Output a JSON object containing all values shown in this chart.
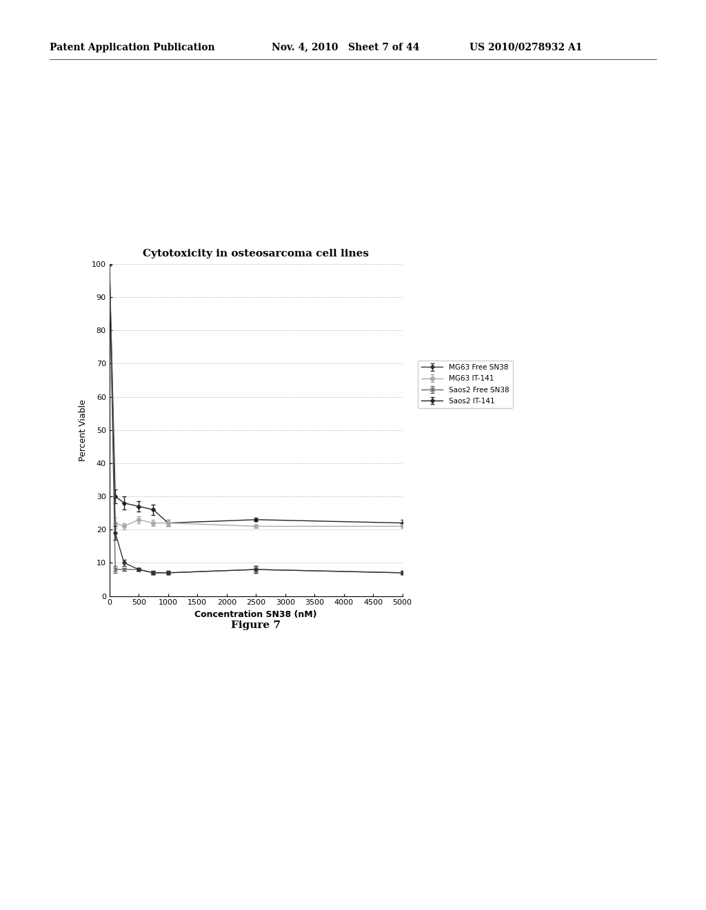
{
  "title": "Cytotoxicity in osteosarcoma cell lines",
  "xlabel": "Concentration SN38 (nM)",
  "ylabel": "Percent Viable",
  "figure_caption": "Figure 7",
  "header_left": "Patent Application Publication",
  "header_mid": "Nov. 4, 2010   Sheet 7 of 44",
  "header_right": "US 2010/0278932 A1",
  "xlim": [
    0,
    5000
  ],
  "ylim": [
    0,
    100
  ],
  "xticks": [
    0,
    500,
    1000,
    1500,
    2000,
    2500,
    3000,
    3500,
    4000,
    4500,
    5000
  ],
  "yticks": [
    0,
    10,
    20,
    30,
    40,
    50,
    60,
    70,
    80,
    90,
    100
  ],
  "series": [
    {
      "label": "MG63 Free SN38",
      "x": [
        0,
        100,
        250,
        500,
        750,
        1000,
        2500,
        5000
      ],
      "y": [
        100,
        19,
        10,
        8,
        7,
        7,
        8,
        7
      ],
      "yerr": [
        0,
        2,
        1,
        0.5,
        0.5,
        0.5,
        1,
        0.5
      ],
      "color": "#333333",
      "linestyle": "-",
      "marker": "D",
      "markersize": 3,
      "linewidth": 1.0
    },
    {
      "label": "MG63 IT-141",
      "x": [
        0,
        100,
        250,
        500,
        750,
        1000,
        2500,
        5000
      ],
      "y": [
        100,
        22,
        21,
        23,
        22,
        22,
        21,
        21
      ],
      "yerr": [
        0,
        1.5,
        1,
        1,
        1,
        1,
        0.5,
        0.5
      ],
      "color": "#aaaaaa",
      "linestyle": "-",
      "marker": "o",
      "markersize": 4,
      "linewidth": 1.0
    },
    {
      "label": "Saos2 Free SN38",
      "x": [
        0,
        100,
        250,
        500,
        750,
        1000,
        2500,
        5000
      ],
      "y": [
        100,
        8,
        8,
        8,
        7,
        7,
        8,
        7
      ],
      "yerr": [
        0,
        1,
        0.5,
        0.5,
        0.5,
        0.5,
        1,
        0.5
      ],
      "color": "#666666",
      "linestyle": "-",
      "marker": "x",
      "markersize": 5,
      "linewidth": 1.0
    },
    {
      "label": "Saos2 IT-141",
      "x": [
        0,
        100,
        250,
        500,
        750,
        1000,
        2500,
        5000
      ],
      "y": [
        100,
        30,
        28,
        27,
        26,
        22,
        23,
        22
      ],
      "yerr": [
        0,
        2,
        2,
        1.5,
        1.5,
        1,
        0.5,
        1
      ],
      "color": "#222222",
      "linestyle": "-",
      "marker": "D",
      "markersize": 3,
      "linewidth": 1.0
    }
  ],
  "background_color": "#ffffff",
  "grid_color": "#aaaaaa",
  "grid_linestyle": ":",
  "grid_linewidth": 0.7
}
